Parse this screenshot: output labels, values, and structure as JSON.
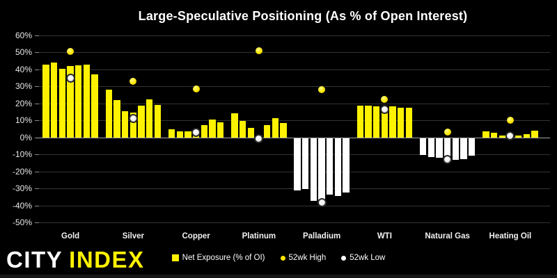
{
  "title": "Large-Speculative Positioning (As % of Open Interest)",
  "brand": {
    "word1": "CITY",
    "word2": "INDEX"
  },
  "legend": {
    "items": [
      {
        "label": "Net Exposure (% of OI)",
        "swatch": "yellow-square-icon"
      },
      {
        "label": "52wk High",
        "swatch": "yellow-dot-icon"
      },
      {
        "label": "52wk Low",
        "swatch": "white-dot-icon"
      }
    ]
  },
  "colors": {
    "background": "#000000",
    "positive_bar": "#FFF200",
    "negative_bar": "#FFFFFF",
    "high_dot": "#FFE600",
    "low_dot": "#FFFFFF",
    "grid": "#333333",
    "zero_line": "#A6A6A6",
    "text": "#FFFFFF",
    "brand_yellow": "#FFF200"
  },
  "chart_data": {
    "type": "bar",
    "title": "Large-Speculative Positioning (As % of Open Interest)",
    "categories": [
      "Gold",
      "Silver",
      "Copper",
      "Platinum",
      "Palladium",
      "WTI",
      "Natural Gas",
      "Heating Oil"
    ],
    "bars_per_category": 7,
    "series": [
      {
        "name": "Net Exposure (% of OI)",
        "values": [
          [
            43.0,
            44.0,
            40.5,
            42.0,
            42.5,
            43.0,
            37.0
          ],
          [
            28.0,
            22.0,
            15.5,
            14.5,
            18.5,
            22.5,
            19.0
          ],
          [
            4.8,
            3.7,
            3.4,
            4.1,
            7.4,
            10.6,
            8.8
          ],
          [
            14.0,
            9.5,
            5.7,
            1.3,
            7.2,
            11.5,
            8.4
          ],
          [
            -31.0,
            -30.5,
            -37.5,
            -38.0,
            -33.5,
            -34.5,
            -32.5
          ],
          [
            18.7,
            18.7,
            18.3,
            18.0,
            18.3,
            17.6,
            17.4
          ],
          [
            -10.3,
            -11.5,
            -11.9,
            -12.9,
            -13.2,
            -12.6,
            -10.8
          ],
          [
            3.7,
            2.7,
            1.0,
            1.4,
            1.0,
            2.0,
            4.0
          ]
        ]
      },
      {
        "name": "52wk High",
        "values": [
          50.5,
          33.0,
          28.5,
          51.0,
          28.0,
          22.5,
          3.3,
          10.0
        ]
      },
      {
        "name": "52wk Low",
        "values": [
          35.0,
          11.0,
          3.0,
          -0.7,
          -38.5,
          16.5,
          -13.0,
          1.0
        ]
      }
    ],
    "ylim": [
      -50,
      60
    ],
    "y_tick_step": 10,
    "y_tick_labels": [
      "60%",
      "50%",
      "40%",
      "30%",
      "20%",
      "10%",
      "0%",
      "-10%",
      "-20%",
      "-30%",
      "-40%",
      "-50%"
    ],
    "grid": true,
    "legend_position": "bottom"
  }
}
